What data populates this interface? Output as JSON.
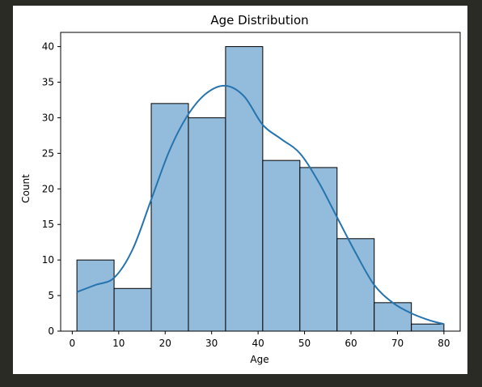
{
  "chart_data": {
    "type": "bar",
    "title": "Age Distribution",
    "xlabel": "Age",
    "ylabel": "Count",
    "xlim": [
      -2.5,
      83.5
    ],
    "ylim": [
      0,
      42
    ],
    "xticks": [
      0,
      10,
      20,
      30,
      40,
      50,
      60,
      70,
      80
    ],
    "yticks": [
      0,
      5,
      10,
      15,
      20,
      25,
      30,
      35,
      40
    ],
    "bins": [
      {
        "start": 1,
        "end": 9,
        "count": 10
      },
      {
        "start": 9,
        "end": 17,
        "count": 6
      },
      {
        "start": 17,
        "end": 25,
        "count": 32
      },
      {
        "start": 25,
        "end": 33,
        "count": 30
      },
      {
        "start": 33,
        "end": 41,
        "count": 40
      },
      {
        "start": 41,
        "end": 49,
        "count": 24
      },
      {
        "start": 49,
        "end": 57,
        "count": 23
      },
      {
        "start": 57,
        "end": 65,
        "count": 13
      },
      {
        "start": 65,
        "end": 73,
        "count": 4
      },
      {
        "start": 73,
        "end": 80,
        "count": 1
      }
    ],
    "kde": {
      "x": [
        1,
        5,
        9,
        13,
        17,
        21,
        25,
        29,
        33,
        37,
        41,
        45,
        49,
        53,
        57,
        61,
        65,
        69,
        73,
        77,
        80
      ],
      "y": [
        5.5,
        6.5,
        7.5,
        11.5,
        18.5,
        25.5,
        30.5,
        33.5,
        34.5,
        33,
        29,
        27,
        25,
        21,
        16,
        11,
        6.5,
        4,
        2.5,
        1.5,
        1
      ]
    },
    "colors": {
      "bar_fill": "#92bbdc",
      "bar_edge": "#000000",
      "kde_line": "#2574ae"
    },
    "grid": false,
    "legend": "none"
  }
}
